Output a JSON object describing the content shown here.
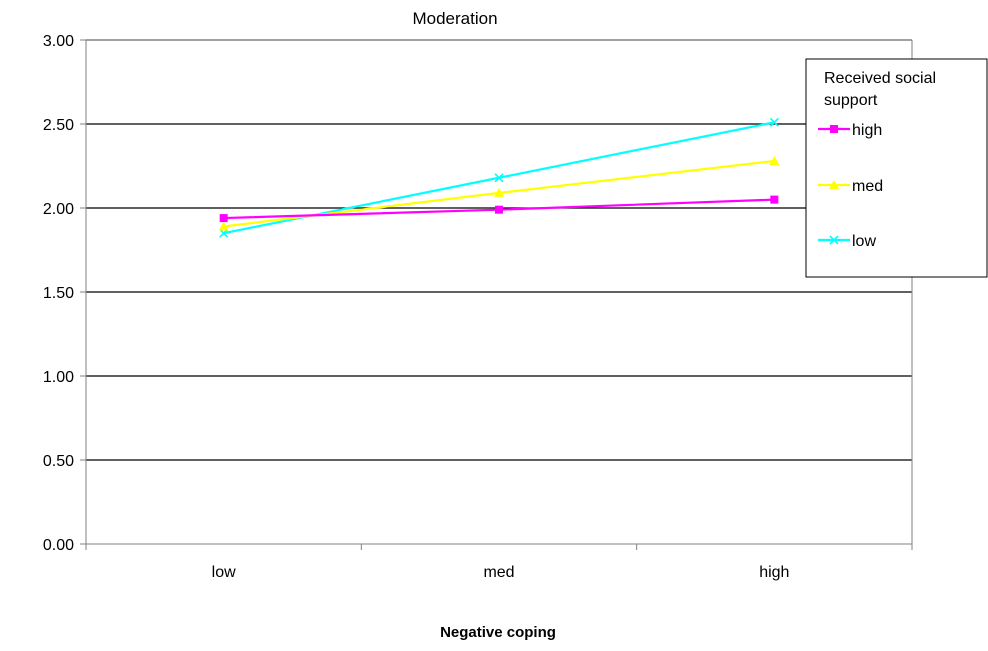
{
  "chart_data": {
    "type": "line",
    "title": "Moderation",
    "xlabel": "Negative coping",
    "ylabel": "",
    "categories": [
      "low",
      "med",
      "high"
    ],
    "ylim": [
      0,
      3
    ],
    "yticks": [
      "0.00",
      "0.50",
      "1.00",
      "1.50",
      "2.00",
      "2.50",
      "3.00"
    ],
    "grid": true,
    "legend": {
      "title_lines": [
        "Received social",
        "support"
      ],
      "placement": "right"
    },
    "series": [
      {
        "name": "high",
        "values": [
          1.94,
          1.99,
          2.05
        ],
        "color": "#FF00FF",
        "marker": "square"
      },
      {
        "name": "med",
        "values": [
          1.89,
          2.09,
          2.28
        ],
        "color": "#FFFF00",
        "marker": "triangle"
      },
      {
        "name": "low",
        "values": [
          1.85,
          2.18,
          2.51
        ],
        "color": "#00FFFF",
        "marker": "x"
      }
    ]
  }
}
